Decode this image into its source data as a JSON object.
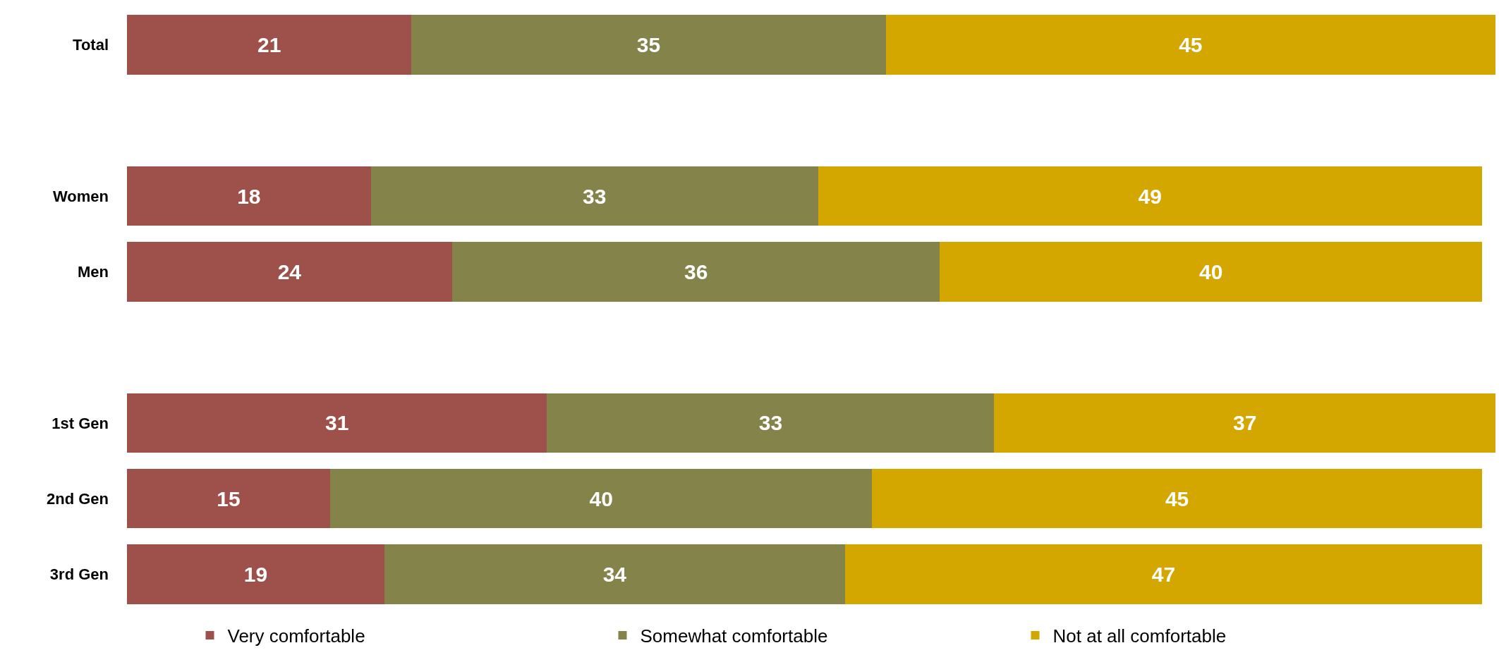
{
  "chart_data": {
    "type": "bar",
    "orientation": "horizontal",
    "stacked": true,
    "data_labels": true,
    "legend": "bottom",
    "categories": [
      "Total",
      null,
      "Women",
      "Men",
      null,
      "1st Gen",
      "2nd Gen",
      "3rd Gen"
    ],
    "series": [
      {
        "name": "Very comfortable",
        "color": "#9e514b",
        "values": [
          21,
          null,
          18,
          24,
          null,
          31,
          15,
          19
        ]
      },
      {
        "name": "Somewhat comfortable",
        "color": "#83834a",
        "values": [
          35,
          null,
          33,
          36,
          null,
          33,
          40,
          34
        ]
      },
      {
        "name": "Not at all comfortable",
        "color": "#d4a600",
        "values": [
          45,
          null,
          49,
          40,
          null,
          37,
          45,
          47
        ]
      }
    ]
  }
}
